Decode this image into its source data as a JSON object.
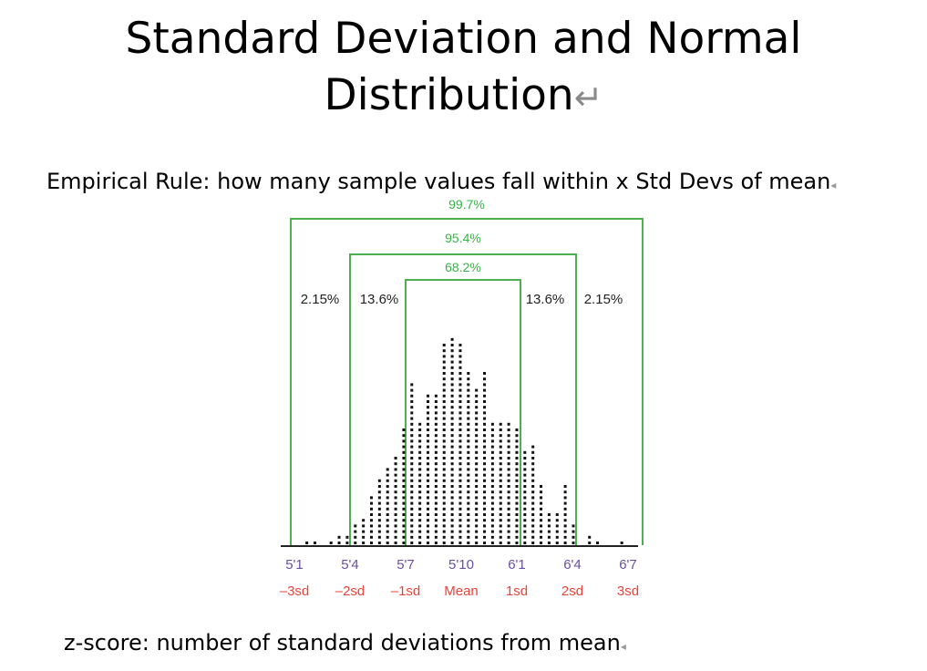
{
  "slide": {
    "title": "Standard Deviation and Normal Distribution",
    "subtitle": "Empirical Rule: how many sample values fall within x Std Devs of mean",
    "footer": "z-score: number of standard deviations from mean"
  },
  "colors": {
    "bracket": "#4caf50",
    "bracket_label": "#34b545",
    "height_label": "#6a4fa0",
    "sd_label": "#e8443a",
    "dots": "#111111"
  },
  "chart_data": {
    "type": "dot-histogram",
    "x_ticks": [
      "5'1",
      "5'4",
      "5'7",
      "5'10",
      "6'1",
      "6'4",
      "6'7"
    ],
    "sd_ticks": [
      "–3sd",
      "–2sd",
      "–1sd",
      "Mean",
      "1sd",
      "2sd",
      "3sd"
    ],
    "brackets": [
      {
        "label": "99.7%",
        "from_sd": -3,
        "to_sd": 3
      },
      {
        "label": "95.4%",
        "from_sd": -2,
        "to_sd": 2
      },
      {
        "label": "68.2%",
        "from_sd": -1,
        "to_sd": 1
      }
    ],
    "region_labels": [
      {
        "label": "2.15%",
        "region": "-3sd to -2sd"
      },
      {
        "label": "13.6%",
        "region": "-2sd to -1sd"
      },
      {
        "label": "13.6%",
        "region": "1sd to 2sd"
      },
      {
        "label": "2.15%",
        "region": "2sd to 3sd"
      }
    ],
    "dot_counts": [
      0,
      0,
      1,
      1,
      0,
      1,
      2,
      2,
      4,
      5,
      9,
      12,
      14,
      16,
      21,
      29,
      22,
      27,
      27,
      36,
      37,
      36,
      31,
      28,
      31,
      22,
      22,
      22,
      21,
      17,
      18,
      11,
      6,
      6,
      11,
      4,
      0,
      2,
      1,
      0,
      0,
      1,
      0
    ],
    "x_range_sd": [
      -3.1,
      3.0
    ]
  }
}
